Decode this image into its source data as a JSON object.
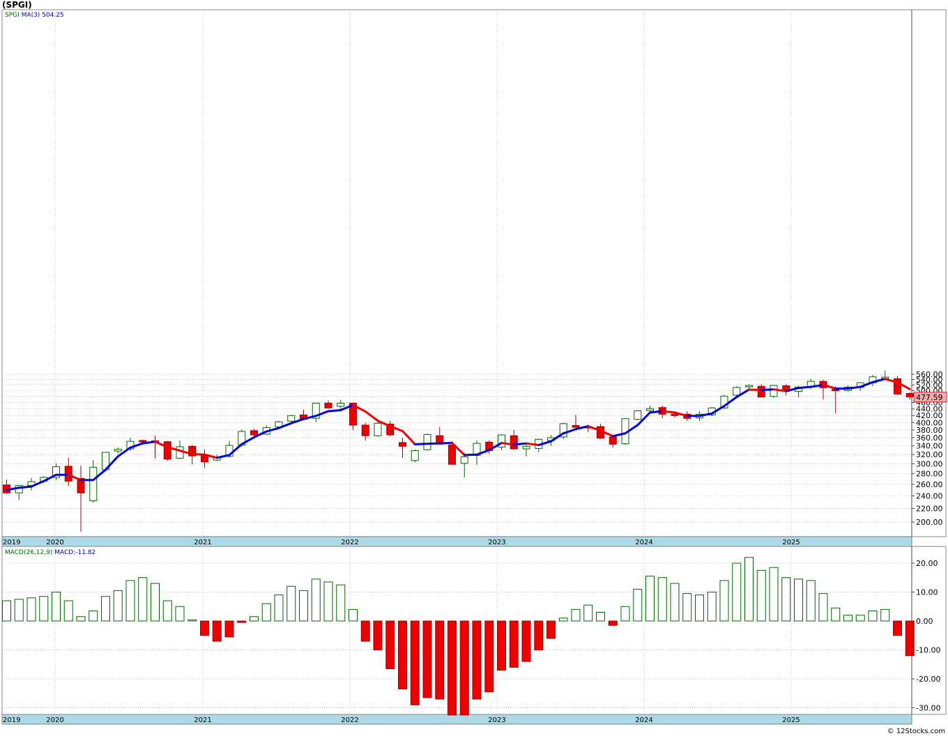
{
  "title": "(SPGI)",
  "credit": "© 12Stocks.com",
  "chart_data": [
    {
      "type": "candlestick",
      "name": "price",
      "legend": {
        "symbol": "SPGI",
        "ma_label": "MA(3)",
        "ma_value": "504.25"
      },
      "last_price_label": "477.59",
      "y_ticks": [
        200,
        220,
        240,
        260,
        280,
        300,
        320,
        340,
        360,
        380,
        400,
        420,
        440,
        460,
        480,
        500,
        520,
        540,
        560
      ],
      "y_tick_labels": [
        "200.00",
        "220.00",
        "240.00",
        "260.00",
        "280.00",
        "300.00",
        "320.00",
        "340.00",
        "360.00",
        "380.00",
        "400.00",
        "420.00",
        "440.00",
        "460.00",
        "480.00",
        "500.00",
        "520.00",
        "540.00",
        "560.00"
      ],
      "x_labels": [
        "2019",
        "2020",
        "2021",
        "2022",
        "2023",
        "2024",
        "2025"
      ],
      "ylim": [
        185,
        580
      ],
      "scale": "log",
      "grid": true,
      "up_color": "#ffffff",
      "down_color": "#ee0000",
      "ma_up_color": "#0000dd",
      "ma_down_color": "#ee0000",
      "candles": [
        {
          "o": 259,
          "h": 269,
          "l": 243,
          "c": 245
        },
        {
          "o": 245,
          "h": 259,
          "l": 233,
          "c": 258
        },
        {
          "o": 258,
          "h": 272,
          "l": 249,
          "c": 265
        },
        {
          "o": 266,
          "h": 275,
          "l": 262,
          "c": 273
        },
        {
          "o": 273,
          "h": 301,
          "l": 268,
          "c": 294
        },
        {
          "o": 295,
          "h": 313,
          "l": 257,
          "c": 266
        },
        {
          "o": 271,
          "h": 297,
          "l": 187,
          "c": 245
        },
        {
          "o": 232,
          "h": 308,
          "l": 229,
          "c": 293
        },
        {
          "o": 288,
          "h": 326,
          "l": 285,
          "c": 325
        },
        {
          "o": 328,
          "h": 336,
          "l": 322,
          "c": 332
        },
        {
          "o": 333,
          "h": 360,
          "l": 328,
          "c": 351
        },
        {
          "o": 353,
          "h": 355,
          "l": 350,
          "c": 352
        },
        {
          "o": 352,
          "h": 365,
          "l": 312,
          "c": 348
        },
        {
          "o": 350,
          "h": 352,
          "l": 306,
          "c": 310
        },
        {
          "o": 312,
          "h": 353,
          "l": 310,
          "c": 338
        },
        {
          "o": 339,
          "h": 342,
          "l": 299,
          "c": 317
        },
        {
          "o": 320,
          "h": 332,
          "l": 291,
          "c": 304
        },
        {
          "o": 308,
          "h": 320,
          "l": 306,
          "c": 313
        },
        {
          "o": 316,
          "h": 352,
          "l": 313,
          "c": 341
        },
        {
          "o": 342,
          "h": 382,
          "l": 338,
          "c": 376
        },
        {
          "o": 378,
          "h": 383,
          "l": 360,
          "c": 367
        },
        {
          "o": 369,
          "h": 393,
          "l": 366,
          "c": 386
        },
        {
          "o": 388,
          "h": 405,
          "l": 384,
          "c": 402
        },
        {
          "o": 404,
          "h": 422,
          "l": 401,
          "c": 420
        },
        {
          "o": 422,
          "h": 438,
          "l": 408,
          "c": 409
        },
        {
          "o": 412,
          "h": 460,
          "l": 401,
          "c": 458
        },
        {
          "o": 458,
          "h": 467,
          "l": 440,
          "c": 443
        },
        {
          "o": 448,
          "h": 469,
          "l": 432,
          "c": 458
        },
        {
          "o": 458,
          "h": 460,
          "l": 380,
          "c": 393
        },
        {
          "o": 393,
          "h": 400,
          "l": 353,
          "c": 365
        },
        {
          "o": 365,
          "h": 411,
          "l": 362,
          "c": 398
        },
        {
          "o": 396,
          "h": 405,
          "l": 363,
          "c": 367
        },
        {
          "o": 348,
          "h": 360,
          "l": 313,
          "c": 339
        },
        {
          "o": 307,
          "h": 332,
          "l": 303,
          "c": 329
        },
        {
          "o": 331,
          "h": 371,
          "l": 329,
          "c": 368
        },
        {
          "o": 365,
          "h": 387,
          "l": 344,
          "c": 344
        },
        {
          "o": 342,
          "h": 352,
          "l": 298,
          "c": 299
        },
        {
          "o": 301,
          "h": 324,
          "l": 273,
          "c": 315
        },
        {
          "o": 318,
          "h": 353,
          "l": 298,
          "c": 346
        },
        {
          "o": 349,
          "h": 354,
          "l": 321,
          "c": 329
        },
        {
          "o": 337,
          "h": 369,
          "l": 330,
          "c": 367
        },
        {
          "o": 365,
          "h": 380,
          "l": 331,
          "c": 333
        },
        {
          "o": 333,
          "h": 346,
          "l": 316,
          "c": 339
        },
        {
          "o": 334,
          "h": 358,
          "l": 325,
          "c": 356
        },
        {
          "o": 353,
          "h": 367,
          "l": 340,
          "c": 360
        },
        {
          "o": 362,
          "h": 399,
          "l": 356,
          "c": 397
        },
        {
          "o": 392,
          "h": 422,
          "l": 385,
          "c": 387
        },
        {
          "o": 389,
          "h": 394,
          "l": 374,
          "c": 388
        },
        {
          "o": 389,
          "h": 397,
          "l": 357,
          "c": 359
        },
        {
          "o": 362,
          "h": 364,
          "l": 336,
          "c": 344
        },
        {
          "o": 345,
          "h": 413,
          "l": 342,
          "c": 411
        },
        {
          "o": 409,
          "h": 436,
          "l": 407,
          "c": 434
        },
        {
          "o": 435,
          "h": 451,
          "l": 428,
          "c": 441
        },
        {
          "o": 444,
          "h": 450,
          "l": 412,
          "c": 424
        },
        {
          "o": 424,
          "h": 428,
          "l": 414,
          "c": 421
        },
        {
          "o": 424,
          "h": 433,
          "l": 405,
          "c": 412
        },
        {
          "o": 413,
          "h": 432,
          "l": 405,
          "c": 424
        },
        {
          "o": 422,
          "h": 446,
          "l": 418,
          "c": 443
        },
        {
          "o": 443,
          "h": 485,
          "l": 440,
          "c": 481
        },
        {
          "o": 484,
          "h": 515,
          "l": 480,
          "c": 511
        },
        {
          "o": 514,
          "h": 522,
          "l": 505,
          "c": 518
        },
        {
          "o": 515,
          "h": 523,
          "l": 478,
          "c": 478
        },
        {
          "o": 480,
          "h": 520,
          "l": 475,
          "c": 518
        },
        {
          "o": 517,
          "h": 523,
          "l": 483,
          "c": 497
        },
        {
          "o": 497,
          "h": 517,
          "l": 477,
          "c": 512
        },
        {
          "o": 512,
          "h": 543,
          "l": 505,
          "c": 533
        },
        {
          "o": 533,
          "h": 539,
          "l": 470,
          "c": 510
        },
        {
          "o": 504,
          "h": 515,
          "l": 426,
          "c": 500
        },
        {
          "o": 500,
          "h": 518,
          "l": 497,
          "c": 512
        },
        {
          "o": 511,
          "h": 530,
          "l": 498,
          "c": 528
        },
        {
          "o": 528,
          "h": 558,
          "l": 516,
          "c": 550
        },
        {
          "o": 545,
          "h": 575,
          "l": 540,
          "c": 549
        },
        {
          "o": 543,
          "h": 553,
          "l": 485,
          "c": 488
        },
        {
          "o": 490,
          "h": 494,
          "l": 470,
          "c": 478
        }
      ],
      "ma3": [
        250,
        254,
        256,
        266,
        278,
        278,
        268,
        268,
        288,
        316,
        336,
        346,
        350,
        337,
        329,
        321,
        320,
        313,
        319,
        344,
        361,
        376,
        385,
        398,
        410,
        419,
        433,
        436,
        452,
        432,
        405,
        390,
        377,
        344,
        345,
        346,
        347,
        319,
        320,
        330,
        347,
        343,
        346,
        342,
        351,
        371,
        382,
        390,
        378,
        364,
        371,
        393,
        429,
        433,
        429,
        419,
        419,
        426,
        449,
        478,
        503,
        502,
        504,
        498,
        509,
        513,
        520,
        507,
        507,
        513,
        530,
        542,
        529,
        505
      ]
    },
    {
      "type": "bar",
      "name": "macd-histogram",
      "legend": {
        "label": "MACD(26,12,9)",
        "value_label": "MACD:",
        "value": "-11.82"
      },
      "y_ticks": [
        -30,
        -20,
        -10,
        0,
        10,
        20
      ],
      "y_tick_labels": [
        "-30.00",
        "-20.00",
        "-10.00",
        "0.00",
        "10.00",
        "20.00"
      ],
      "x_labels": [
        "2019",
        "2020",
        "2021",
        "2022",
        "2023",
        "2024",
        "2025"
      ],
      "ylim": [
        -32.5,
        22.5
      ],
      "pos_color": "#ffffff",
      "neg_color": "#ee0000",
      "values": [
        7,
        7.5,
        8,
        8.5,
        10,
        7,
        1.5,
        3.5,
        8.5,
        10.5,
        14,
        15,
        13,
        7,
        5,
        0.4,
        -5,
        -7,
        -5.5,
        -0.5,
        1.5,
        6,
        9,
        12,
        10.5,
        14.5,
        13.5,
        12.5,
        4,
        -7,
        -10,
        -16.5,
        -23.5,
        -29,
        -26.5,
        -27,
        -32.5,
        -32.5,
        -27,
        -24.5,
        -17,
        -16,
        -14,
        -10,
        -6,
        1,
        4,
        5.5,
        3,
        -1.5,
        5,
        11,
        15.5,
        15,
        13,
        9.5,
        9,
        10,
        14,
        20,
        22,
        17.5,
        18.5,
        15,
        14.5,
        14,
        9.5,
        4.5,
        2,
        2,
        3.5,
        4,
        -5,
        -12
      ]
    }
  ]
}
